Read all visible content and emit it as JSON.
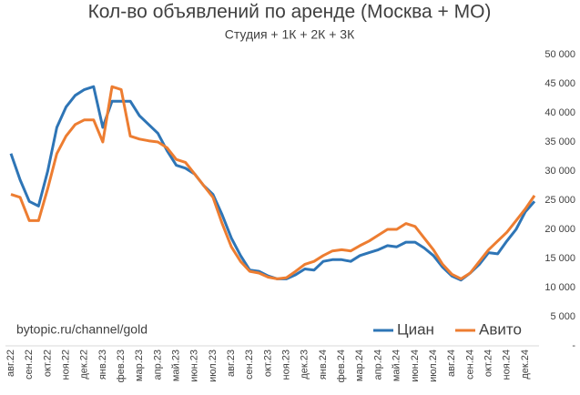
{
  "chart_data": {
    "type": "line",
    "title": "Кол-во объявлений по аренде (Москва + МО)",
    "subtitle": "Студия + 1К + 2К + 3К",
    "annotation": "bytopic.ru/channel/gold",
    "categories": [
      "авг.22",
      null,
      "сен.22",
      null,
      "окт.22",
      null,
      "ноя.22",
      null,
      "дек.22",
      null,
      "янв.23",
      null,
      "фев.23",
      null,
      "мар.23",
      null,
      "апр.23",
      null,
      "май.23",
      null,
      "июн.23",
      null,
      "июл.23",
      null,
      "авг.23",
      null,
      "сен.23",
      null,
      "окт.23",
      null,
      "ноя.23",
      null,
      "дек.23",
      null,
      "янв.24",
      null,
      "фев.24",
      null,
      "мар.24",
      null,
      "апр.24",
      null,
      "май.24",
      null,
      "июн.24",
      null,
      "июл.24",
      null,
      "авг.24",
      null,
      "сен.24",
      null,
      "окт.24",
      null,
      "ноя.24",
      null,
      "дек.24",
      null
    ],
    "series": [
      {
        "name": "Циан",
        "color": "#2e75b6",
        "values": [
          33000,
          28500,
          24800,
          24000,
          30000,
          37500,
          41000,
          43000,
          44000,
          44500,
          37500,
          42000,
          42000,
          42000,
          39500,
          38000,
          36500,
          33500,
          31000,
          30500,
          29500,
          27500,
          26000,
          22500,
          18500,
          15500,
          13000,
          12800,
          12000,
          11500,
          11500,
          12200,
          13200,
          13000,
          14500,
          14800,
          14800,
          14500,
          15500,
          16000,
          16500,
          17200,
          17000,
          17800,
          17800,
          16800,
          15500,
          13500,
          12000,
          11300,
          12500,
          14000,
          16000,
          15800,
          18000,
          20000,
          23000,
          24800
        ]
      },
      {
        "name": "Авито",
        "color": "#ed7d31",
        "values": [
          26000,
          25500,
          21500,
          21500,
          27000,
          33000,
          36000,
          38000,
          38800,
          38800,
          35000,
          44500,
          44000,
          36000,
          35500,
          35200,
          35000,
          34000,
          32000,
          31500,
          29500,
          27500,
          25500,
          21000,
          17000,
          14500,
          12800,
          12500,
          11800,
          11500,
          11700,
          12800,
          14000,
          14500,
          15500,
          16300,
          16500,
          16300,
          17200,
          18000,
          19000,
          20000,
          20000,
          21000,
          20500,
          18500,
          16500,
          14000,
          12300,
          11500,
          12500,
          14500,
          16500,
          18000,
          19500,
          21500,
          23500,
          25800
        ]
      }
    ],
    "ylim": [
      0,
      50000
    ],
    "yticks": [
      {
        "value": 0,
        "label": "-"
      },
      {
        "value": 5000,
        "label": "5 000"
      },
      {
        "value": 10000,
        "label": "10 000"
      },
      {
        "value": 15000,
        "label": "15 000"
      },
      {
        "value": 20000,
        "label": "20 000"
      },
      {
        "value": 25000,
        "label": "25 000"
      },
      {
        "value": 30000,
        "label": "30 000"
      },
      {
        "value": 35000,
        "label": "35 000"
      },
      {
        "value": 40000,
        "label": "40 000"
      },
      {
        "value": 45000,
        "label": "45 000"
      },
      {
        "value": 50000,
        "label": "50 000"
      }
    ],
    "y_axis_side": "right",
    "grid": false,
    "legend": "lower right"
  }
}
